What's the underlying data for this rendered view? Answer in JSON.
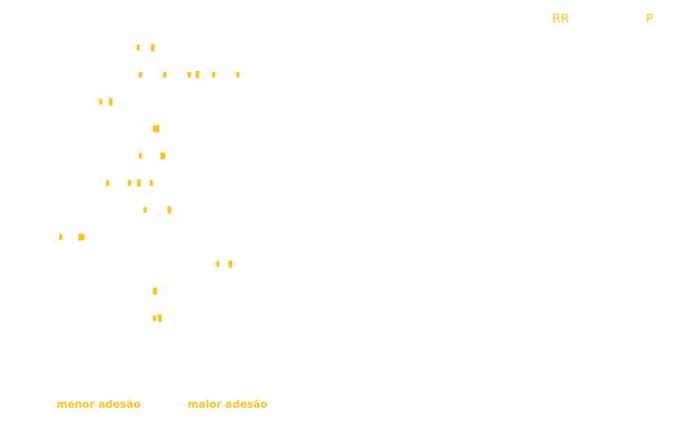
{
  "colors": {
    "accent": "#fec31c"
  },
  "header": {
    "rr_label": "RR",
    "p_label": "P"
  },
  "footer": {
    "left_label": "menor adesão",
    "right_label": "maior adesão"
  },
  "chart_data": {
    "type": "forest",
    "title": "",
    "xlabel": "",
    "ylabel": "",
    "grid": false,
    "legend": "none",
    "x_direction_labels": [
      "menor adesão",
      "maior adesão"
    ],
    "column_headers": [
      "RR",
      "P"
    ],
    "rows": [
      {
        "row": 1,
        "estimate": 0.69,
        "lower": 0.62,
        "upper": 0.72,
        "rr_text": "",
        "p_text": ""
      },
      {
        "row": 2,
        "estimate": 0.88,
        "lower": 0.63,
        "upper": 1.15,
        "rr_text": "",
        "p_text": ""
      },
      {
        "row": 3,
        "estimate": 0.51,
        "lower": 0.46,
        "upper": 0.56,
        "rr_text": "",
        "p_text": ""
      },
      {
        "row": 4,
        "estimate": 0.71,
        "lower": 0.69,
        "upper": 0.73,
        "rr_text": "",
        "p_text": ""
      },
      {
        "row": 5,
        "estimate": 0.73,
        "lower": 0.63,
        "upper": 0.83,
        "rr_text": "",
        "p_text": ""
      },
      {
        "row": 6,
        "estimate": 0.63,
        "lower": 0.49,
        "upper": 0.77,
        "rr_text": "",
        "p_text": ""
      },
      {
        "row": 7,
        "estimate": 0.76,
        "lower": 0.65,
        "upper": 0.86,
        "rr_text": "",
        "p_text": ""
      },
      {
        "row": 8,
        "estimate": 0.38,
        "lower": 0.29,
        "upper": 0.48,
        "rr_text": "",
        "p_text": ""
      },
      {
        "row": 9,
        "estimate": 1.02,
        "lower": 0.96,
        "upper": 1.07,
        "rr_text": "",
        "p_text": ""
      },
      {
        "row": 10,
        "estimate": 0.7,
        "lower": 0.69,
        "upper": 0.72,
        "rr_text": "",
        "p_text": ""
      },
      {
        "row": 11,
        "estimate": 0.72,
        "lower": 0.69,
        "upper": 0.75,
        "rr_text": "",
        "p_text": ""
      }
    ]
  }
}
